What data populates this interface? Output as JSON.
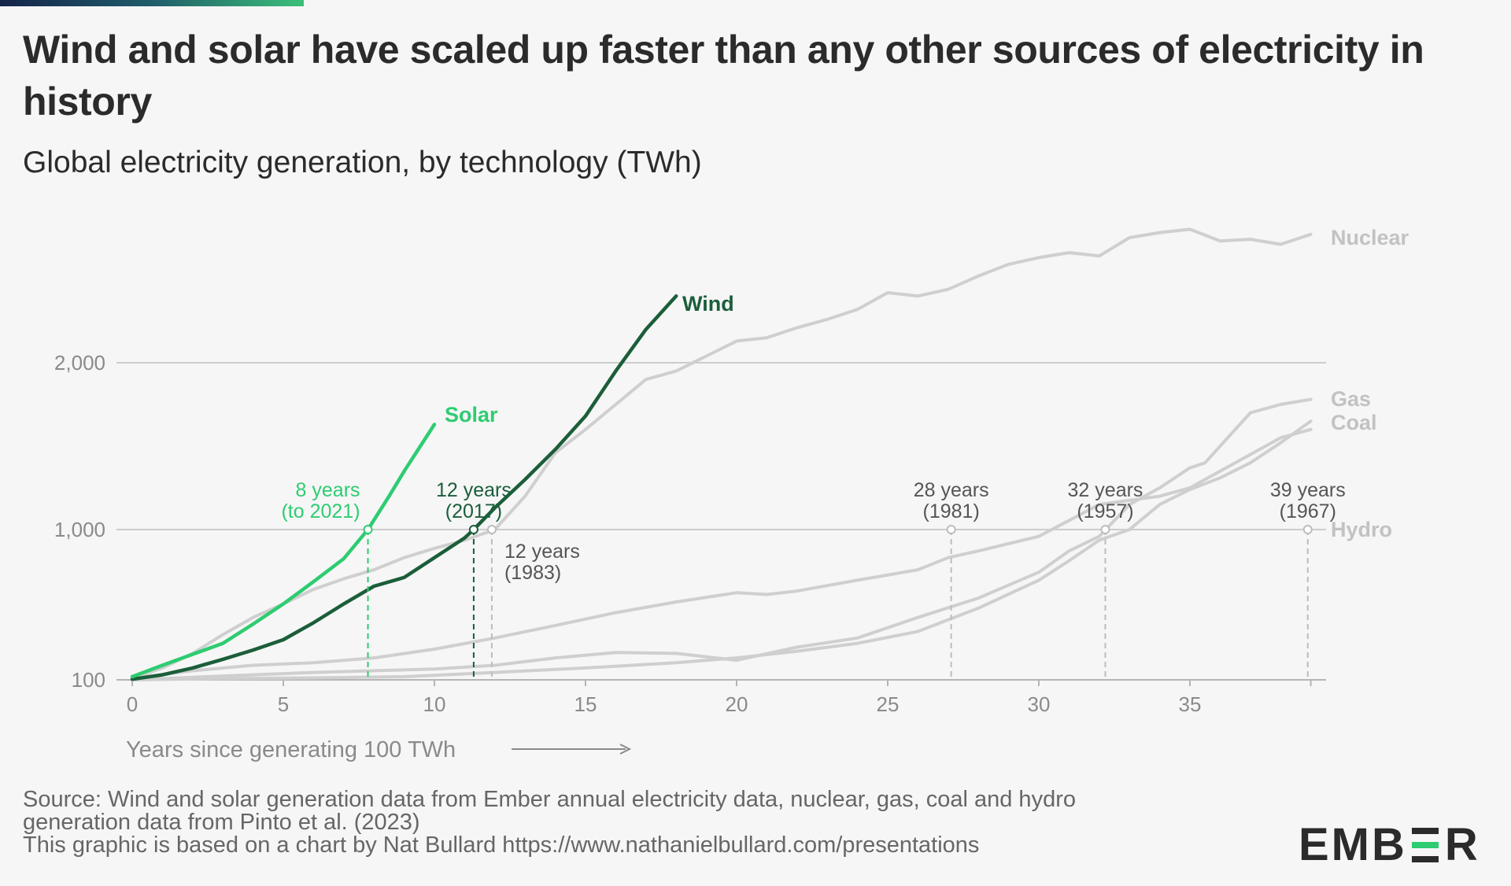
{
  "title": "Wind and solar have scaled up faster than any other sources of electricity in history",
  "subtitle": "Global electricity generation, by technology (TWh)",
  "footer": {
    "source_line1": "Source: Wind and solar generation data from Ember annual electricity data, nuclear, gas, coal and hydro",
    "source_line2": "generation data from Pinto et al. (2023)",
    "credit": "This graphic is based on a chart by Nat Bullard https://www.nathanielbullard.com/presentations"
  },
  "logo": {
    "left": "EMB",
    "right": "R"
  },
  "chart_data": {
    "type": "line",
    "xlabel": "Years since generating 100 TWh",
    "ylabel": "",
    "xlim": [
      0,
      39
    ],
    "x_ticks": [
      0,
      5,
      10,
      15,
      20,
      25,
      30,
      35
    ],
    "y_ticks": [
      100,
      1000,
      2000
    ],
    "y_tick_labels": [
      "100",
      "1,000",
      "2,000"
    ],
    "y_scale": "piecewise (log 100–1,000, linear above 1,000)",
    "grid": "horizontal at 1,000 and 2,000",
    "colors": {
      "Solar": "#2ecc71",
      "Wind": "#1b5e3a",
      "Nuclear": "#cfcfcf",
      "Gas": "#cfcfcf",
      "Coal": "#cfcfcf",
      "Hydro": "#cfcfcf"
    },
    "series": [
      {
        "name": "Solar",
        "label_visible": true,
        "x": [
          0,
          1,
          2,
          3,
          4,
          5,
          6,
          7,
          7.8,
          8.5,
          9,
          10
        ],
        "y": [
          105,
          125,
          148,
          175,
          235,
          320,
          450,
          640,
          1000,
          1200,
          1350,
          1630
        ]
      },
      {
        "name": "Wind",
        "x": [
          0,
          1,
          2,
          3,
          4,
          5,
          6,
          7,
          8,
          9,
          10,
          11,
          11.3,
          12,
          13,
          14,
          15,
          16,
          17,
          18
        ],
        "y": [
          101,
          108,
          120,
          137,
          158,
          185,
          240,
          320,
          420,
          480,
          650,
          880,
          1000,
          1130,
          1300,
          1480,
          1680,
          1950,
          2200,
          2400
        ]
      },
      {
        "name": "Nuclear",
        "x": [
          0,
          1,
          2,
          3,
          4,
          5,
          6,
          7,
          8,
          9,
          10,
          11,
          12,
          13,
          14,
          15,
          16,
          17,
          18,
          19,
          20,
          21,
          22,
          23,
          24,
          25,
          26,
          27,
          28,
          29,
          30,
          31,
          32,
          33,
          34,
          35,
          36,
          37,
          38,
          39
        ],
        "y": [
          102,
          120,
          150,
          200,
          260,
          320,
          400,
          470,
          540,
          650,
          750,
          850,
          1000,
          1200,
          1460,
          1600,
          1750,
          1900,
          1950,
          2040,
          2130,
          2150,
          2210,
          2260,
          2320,
          2420,
          2400,
          2440,
          2520,
          2590,
          2630,
          2660,
          2640,
          2750,
          2780,
          2800,
          2730,
          2740,
          2710,
          2770
        ]
      },
      {
        "name": "Gas",
        "x": [
          0,
          2,
          4,
          6,
          8,
          10,
          12,
          14,
          16,
          18,
          20,
          22,
          24,
          26,
          28,
          30,
          31,
          32,
          33,
          34,
          35,
          35.5,
          36,
          37,
          38,
          39
        ],
        "y": [
          100,
          104,
          108,
          112,
          115,
          118,
          125,
          140,
          152,
          150,
          135,
          165,
          190,
          260,
          350,
          520,
          720,
          900,
          1150,
          1250,
          1370,
          1400,
          1500,
          1700,
          1750,
          1780
        ]
      },
      {
        "name": "Coal",
        "x": [
          0,
          3,
          6,
          9,
          12,
          15,
          18,
          20,
          22,
          24,
          26,
          28,
          30,
          31,
          32,
          33,
          34,
          35,
          36,
          37,
          38,
          39
        ],
        "y": [
          100,
          102,
          103,
          105,
          112,
          120,
          130,
          140,
          155,
          175,
          210,
          300,
          460,
          620,
          850,
          1000,
          1150,
          1240,
          1310,
          1400,
          1520,
          1650
        ]
      },
      {
        "name": "Hydro",
        "x": [
          0,
          2,
          4,
          6,
          8,
          10,
          12,
          14,
          16,
          18,
          20,
          21,
          22,
          24,
          26,
          27,
          28,
          30,
          32,
          34,
          35,
          36,
          37,
          38,
          39
        ],
        "y": [
          102,
          115,
          125,
          130,
          140,
          160,
          190,
          230,
          280,
          330,
          380,
          370,
          390,
          460,
          540,
          650,
          720,
          900,
          1150,
          1200,
          1250,
          1350,
          1450,
          1550,
          1600
        ]
      }
    ],
    "series_labels": [
      "Solar",
      "Wind",
      "Nuclear",
      "Gas",
      "Coal",
      "Hydro"
    ],
    "annotations": [
      {
        "series": "Solar",
        "x": 7.8,
        "line1": "8 years",
        "line2": "(to 2021)"
      },
      {
        "series": "Wind",
        "x": 11.3,
        "line1": "12 years",
        "line2": "(2017)"
      },
      {
        "series": "Nuclear",
        "x": 11.9,
        "line1": "12 years",
        "line2": "(1983)"
      },
      {
        "series": "Hydro",
        "x": 27.1,
        "line1": "28 years",
        "line2": "(1981)"
      },
      {
        "series": "Coal",
        "x": 32.2,
        "line1": "32 years",
        "line2": "(1957)"
      },
      {
        "series": "Gas",
        "x": 38.9,
        "line1": "39 years",
        "line2": "(1967)"
      }
    ]
  }
}
